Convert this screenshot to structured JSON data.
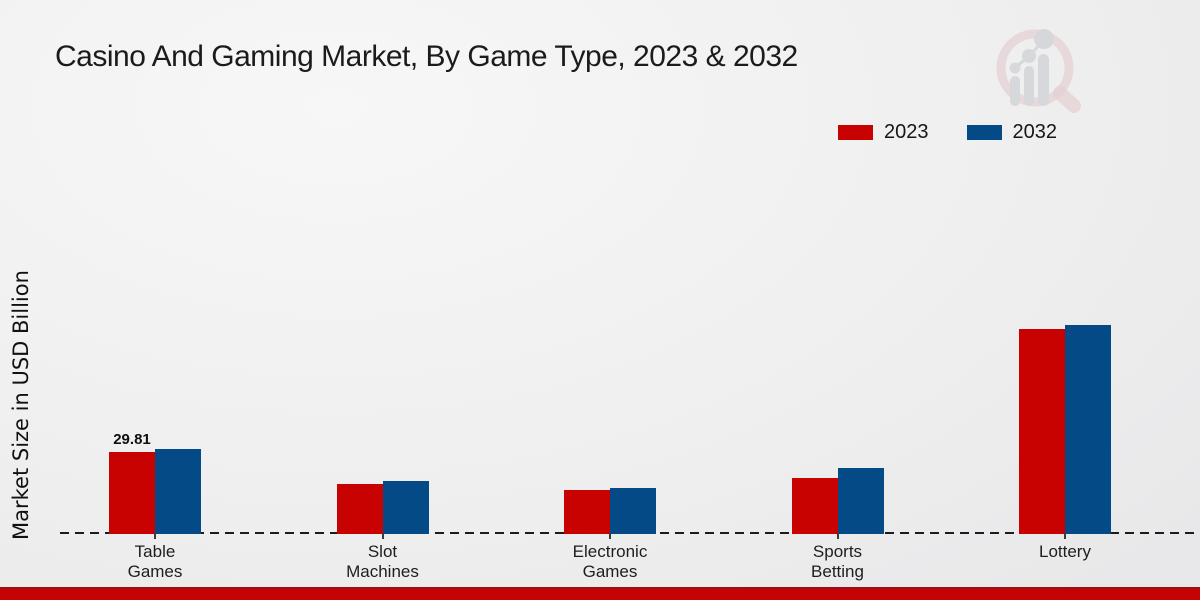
{
  "page": {
    "title": "Casino And Gaming Market, By Game Type, 2023 & 2032"
  },
  "legend": {
    "items": [
      {
        "label": "2023",
        "color": "#c80101"
      },
      {
        "label": "2032",
        "color": "#044a87"
      }
    ]
  },
  "y_axis": {
    "label": "Market Size in USD Billion"
  },
  "watermark": {
    "icon": "magnifier-bar-chart-logo",
    "ring_color": "#dcb9bd",
    "bars_color": "#c3c6cb"
  },
  "footer": {
    "stripe_color": "#c40404"
  },
  "chart_data": {
    "type": "bar",
    "title": "Casino And Gaming Market, By Game Type, 2023 & 2032",
    "categories": [
      "Table Games",
      "Slot Machines",
      "Electronic Games",
      "Sports Betting",
      "Lottery"
    ],
    "series": [
      {
        "name": "2023",
        "color": "#c80101",
        "values": [
          29.81,
          18.2,
          16.0,
          20.4,
          74.5
        ],
        "data_labels": [
          "29.81",
          "",
          "",
          "",
          ""
        ]
      },
      {
        "name": "2032",
        "color": "#044a87",
        "values": [
          31.0,
          19.3,
          16.7,
          24.0,
          76.0
        ],
        "data_labels": [
          "",
          "",
          "",
          "",
          ""
        ]
      }
    ],
    "xlabel": "",
    "ylabel": "Market Size in USD Billion",
    "ylim": [
      0,
      80
    ],
    "grid": false,
    "legend_position": "top-right",
    "baseline_style": "dashed",
    "units": "USD Billion"
  }
}
